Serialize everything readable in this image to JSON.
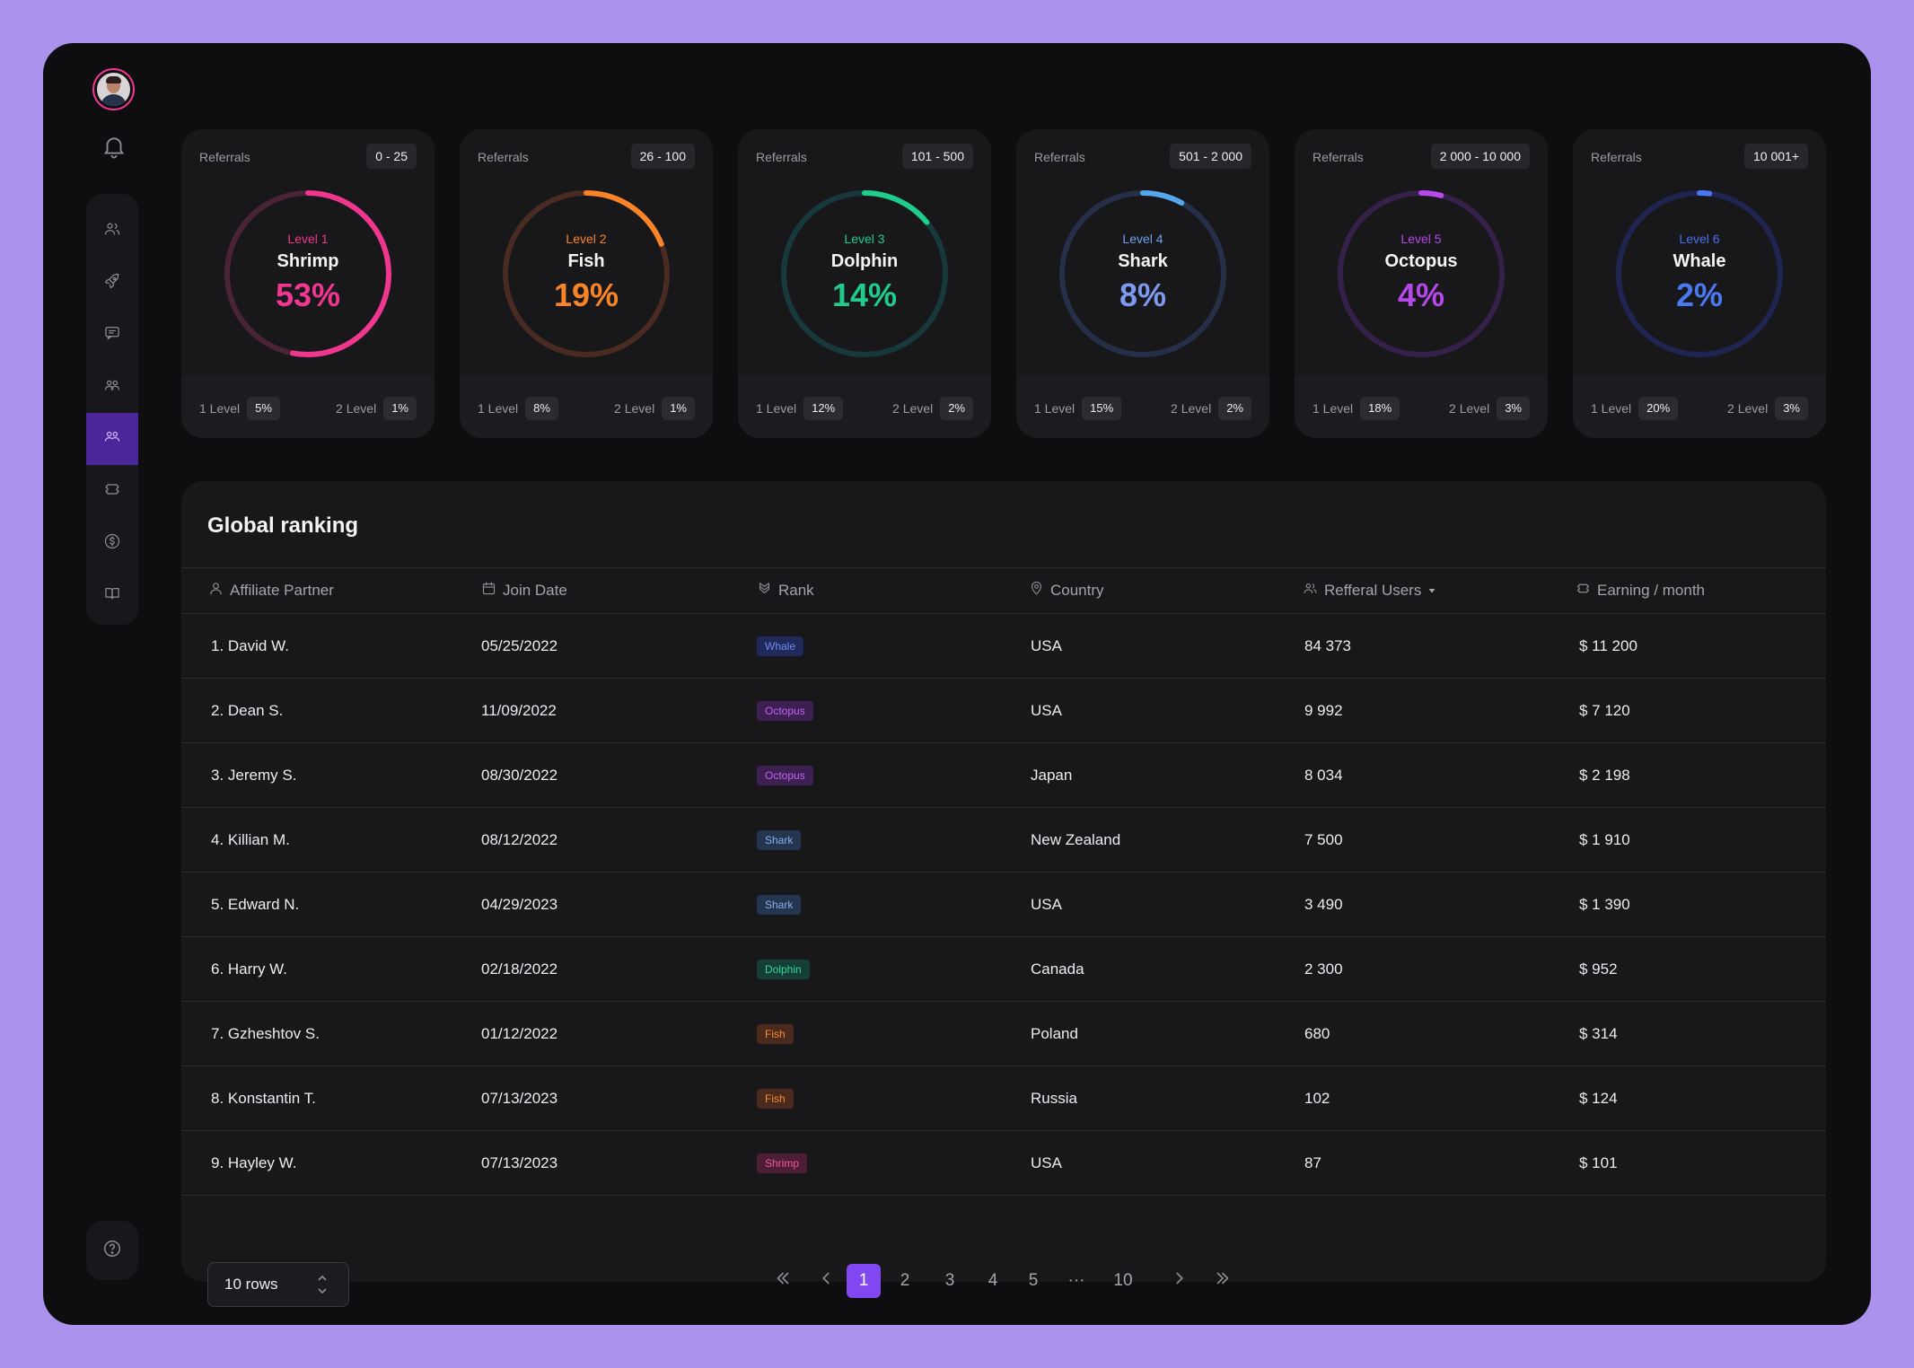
{
  "sidebar": {
    "nav_items": [
      {
        "icon": "users-icon",
        "active": false
      },
      {
        "icon": "rocket-icon",
        "active": false
      },
      {
        "icon": "chat-icon",
        "active": false
      },
      {
        "icon": "team-icon",
        "active": false
      },
      {
        "icon": "referrals-icon",
        "active": true
      },
      {
        "icon": "ticket-icon",
        "active": false
      },
      {
        "icon": "dollar-icon",
        "active": false
      },
      {
        "icon": "book-icon",
        "active": false
      }
    ],
    "help_icon": "help-icon",
    "bell_icon": "bell-icon"
  },
  "levels": [
    {
      "label": "Referrals",
      "range": "0 - 25",
      "level": "Level 1",
      "name": "Shrimp",
      "percent": "53%",
      "progress": 0.53,
      "color": "#f0378f",
      "track": "#4a2436",
      "level_color": "#f0378f",
      "l1_label": "1 Level",
      "l1": "5%",
      "l2_label": "2 Level",
      "l2": "1%"
    },
    {
      "label": "Referrals",
      "range": "26 - 100",
      "level": "Level 2",
      "name": "Fish",
      "percent": "19%",
      "progress": 0.19,
      "color": "#f98428",
      "track": "#4a2b22",
      "level_color": "#f98428",
      "l1_label": "1 Level",
      "l1": "8%",
      "l2_label": "2 Level",
      "l2": "1%"
    },
    {
      "label": "Referrals",
      "range": "101 - 500",
      "level": "Level 3",
      "name": "Dolphin",
      "percent": "14%",
      "progress": 0.14,
      "color": "#20cc8c",
      "track": "#18393b",
      "level_color": "#20cc8c",
      "l1_label": "1 Level",
      "l1": "12%",
      "l2_label": "2 Level",
      "l2": "2%"
    },
    {
      "label": "Referrals",
      "range": "501 - 2 000",
      "level": "Level 4",
      "name": "Shark",
      "percent": "8%",
      "progress": 0.08,
      "color": "#55a8ec",
      "track": "#253048",
      "level_color": "#6da0f0",
      "pct_color": "#7e9af0",
      "l1_label": "1 Level",
      "l1": "15%",
      "l2_label": "2 Level",
      "l2": "2%"
    },
    {
      "label": "Referrals",
      "range": "2 000 - 10 000",
      "level": "Level 5",
      "name": "Octopus",
      "percent": "4%",
      "progress": 0.04,
      "color": "#b548e8",
      "track": "#35204a",
      "level_color": "#b548e8",
      "l1_label": "1 Level",
      "l1": "18%",
      "l2_label": "2 Level",
      "l2": "3%"
    },
    {
      "label": "Referrals",
      "range": "10 001+",
      "level": "Level 6",
      "name": "Whale",
      "percent": "2%",
      "progress": 0.02,
      "color": "#4a78f0",
      "track": "#1f2550",
      "level_color": "#4a6ef0",
      "l1_label": "1 Level",
      "l1": "20%",
      "l2_label": "2 Level",
      "l2": "3%"
    }
  ],
  "ranking": {
    "title": "Global ranking",
    "columns": [
      {
        "label": "Affiliate Partner",
        "icon": "user-icon"
      },
      {
        "label": "Join Date",
        "icon": "calendar-icon"
      },
      {
        "label": "Rank",
        "icon": "rank-icon"
      },
      {
        "label": "Country",
        "icon": "location-icon"
      },
      {
        "label": "Refferal Users",
        "icon": "users-icon",
        "sort": "caret-down-icon"
      },
      {
        "label": "Earning / month",
        "icon": "ticket-icon"
      }
    ],
    "rows": [
      {
        "partner": "1. David W.",
        "date": "05/25/2022",
        "rank": "Whale",
        "country": "USA",
        "users": "84 373",
        "earning": "$ 11 200"
      },
      {
        "partner": "2. Dean S.",
        "date": "11/09/2022",
        "rank": "Octopus",
        "country": "USA",
        "users": "9 992",
        "earning": "$ 7 120"
      },
      {
        "partner": "3. Jeremy S.",
        "date": "08/30/2022",
        "rank": "Octopus",
        "country": "Japan",
        "users": "8 034",
        "earning": "$ 2 198"
      },
      {
        "partner": "4. Killian M.",
        "date": "08/12/2022",
        "rank": "Shark",
        "country": "New Zealand",
        "users": "7 500",
        "earning": "$ 1 910"
      },
      {
        "partner": "5. Edward N.",
        "date": "04/29/2023",
        "rank": "Shark",
        "country": "USA",
        "users": "3 490",
        "earning": "$ 1 390"
      },
      {
        "partner": "6. Harry W.",
        "date": "02/18/2022",
        "rank": "Dolphin",
        "country": "Canada",
        "users": "2 300",
        "earning": "$ 952"
      },
      {
        "partner": "7. Gzheshtov S.",
        "date": "01/12/2022",
        "rank": "Fish",
        "country": "Poland",
        "users": "680",
        "earning": "$ 314"
      },
      {
        "partner": "8. Konstantin T.",
        "date": "07/13/2023",
        "rank": "Fish",
        "country": "Russia",
        "users": "102",
        "earning": "$ 124"
      },
      {
        "partner": "9. Hayley W.",
        "date": "07/13/2023",
        "rank": "Shrimp",
        "country": "USA",
        "users": "87",
        "earning": "$ 101"
      }
    ],
    "rank_colors": {
      "Whale": {
        "bg": "#1f2a5a",
        "fg": "#6d8cf3"
      },
      "Octopus": {
        "bg": "#3d1f52",
        "fg": "#c266f0"
      },
      "Shark": {
        "bg": "#23354f",
        "fg": "#86aeea"
      },
      "Dolphin": {
        "bg": "#153f36",
        "fg": "#34d399"
      },
      "Fish": {
        "bg": "#4a2a1c",
        "fg": "#f98b3c"
      },
      "Shrimp": {
        "bg": "#4d1e33",
        "fg": "#f0579f"
      }
    },
    "rows_per_page": "10 rows",
    "pages": [
      "1",
      "2",
      "3",
      "4",
      "5",
      "...",
      "10"
    ],
    "current_page": "1"
  }
}
